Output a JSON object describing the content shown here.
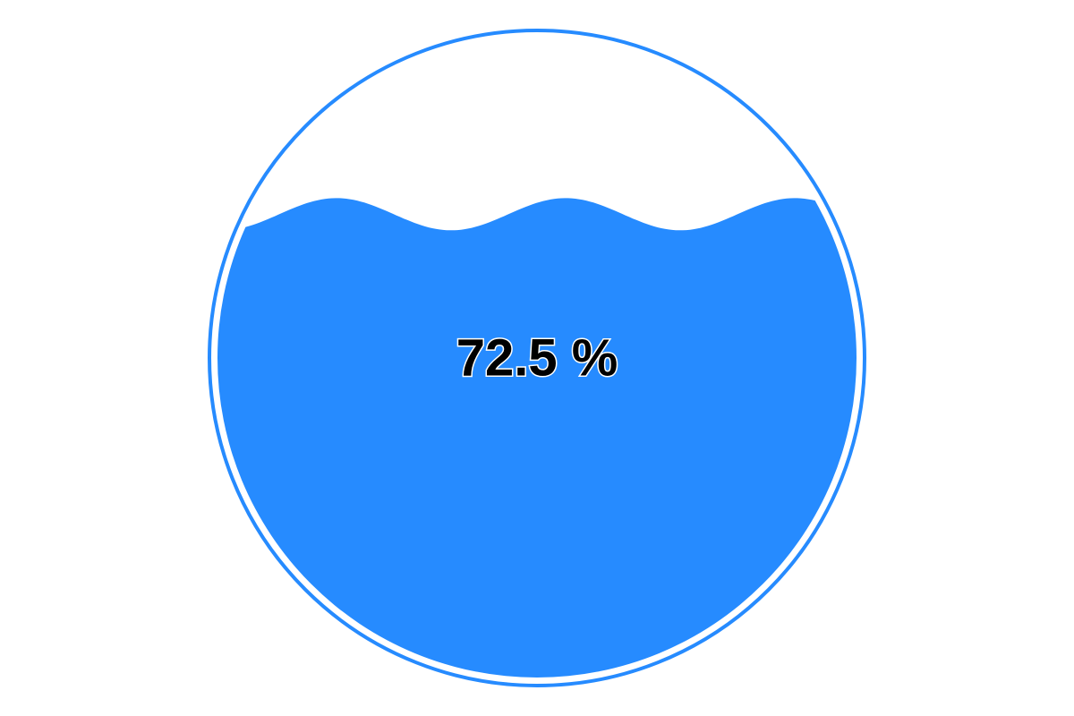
{
  "chart_data": {
    "type": "liquidfill",
    "value": 0.725,
    "label": "72.5 %",
    "colors": {
      "liquid": "#268BFF",
      "outline": "#268BFF",
      "label_fill": "#000000",
      "label_stroke": "#FFFFFF",
      "background": "#FFFFFF"
    }
  }
}
